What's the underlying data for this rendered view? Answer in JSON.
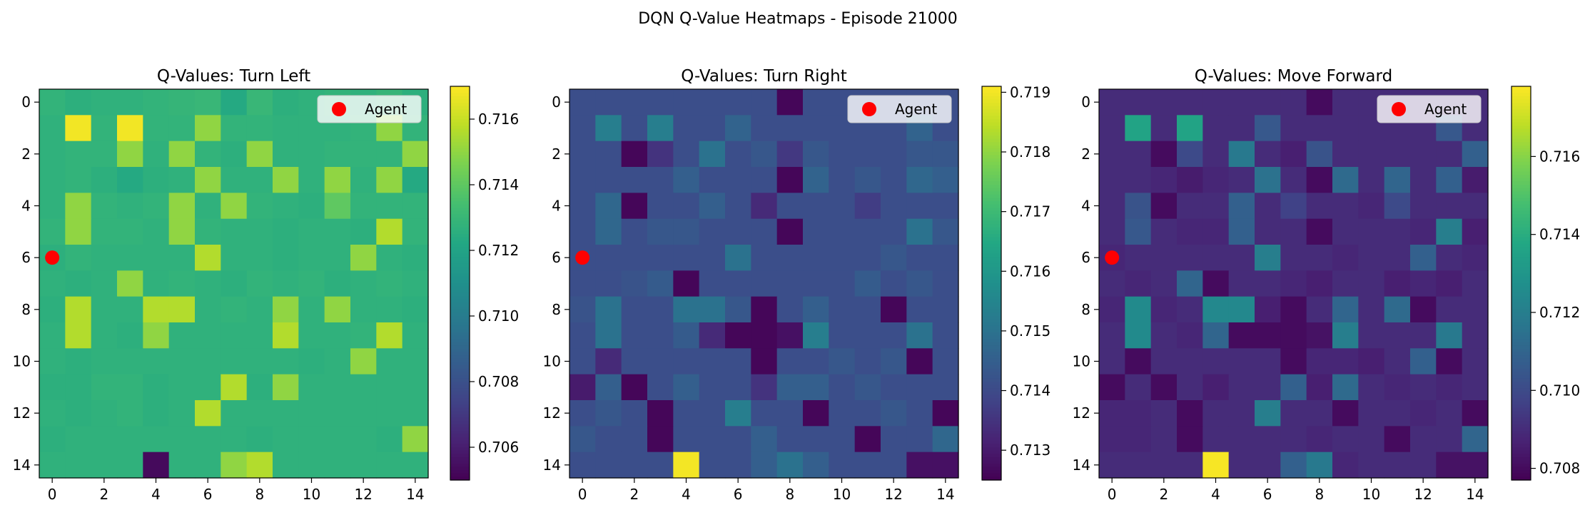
{
  "figure_title": "DQN Q-Value Heatmaps - Episode 21000",
  "legend_label": "Agent",
  "agent_marker_color": "#ff0000",
  "colormap": "viridis",
  "chart_data": [
    {
      "type": "heatmap",
      "title": "Q-Values: Turn Left",
      "x_ticks": [
        "0",
        "2",
        "4",
        "6",
        "8",
        "10",
        "12",
        "14"
      ],
      "y_ticks": [
        "0",
        "2",
        "4",
        "6",
        "8",
        "10",
        "12",
        "14"
      ],
      "colorbar_ticks": [
        "0.706",
        "0.708",
        "0.710",
        "0.712",
        "0.714",
        "0.716"
      ],
      "colorbar_range": [
        0.705,
        0.717
      ],
      "agent": {
        "x": 0,
        "y": 6
      },
      "legend": "top-right",
      "values": [
        [
          0.7128,
          0.7126,
          0.7127,
          0.7127,
          0.7128,
          0.7129,
          0.713,
          0.7123,
          0.713,
          0.7126,
          0.7127,
          0.7128,
          0.7127,
          0.7129,
          0.7126
        ],
        [
          0.7127,
          0.7168,
          0.7128,
          0.7168,
          0.7128,
          0.7128,
          0.715,
          0.7128,
          0.7128,
          0.7127,
          0.7127,
          0.7127,
          0.7128,
          0.715,
          0.7128
        ],
        [
          0.7127,
          0.7128,
          0.7128,
          0.715,
          0.7127,
          0.715,
          0.7128,
          0.7126,
          0.715,
          0.7127,
          0.7127,
          0.7128,
          0.7128,
          0.7128,
          0.715
        ],
        [
          0.7127,
          0.7128,
          0.7126,
          0.7123,
          0.7126,
          0.7127,
          0.715,
          0.7127,
          0.7127,
          0.715,
          0.7127,
          0.715,
          0.7127,
          0.715,
          0.7123
        ],
        [
          0.7127,
          0.715,
          0.7128,
          0.7127,
          0.7128,
          0.715,
          0.7127,
          0.715,
          0.7128,
          0.7127,
          0.7126,
          0.714,
          0.7128,
          0.7128,
          0.7128
        ],
        [
          0.7128,
          0.715,
          0.7128,
          0.7128,
          0.7127,
          0.715,
          0.7128,
          0.7127,
          0.7127,
          0.7126,
          0.7127,
          0.7127,
          0.7126,
          0.7156,
          0.7128
        ],
        [
          0.7126,
          0.7128,
          0.7127,
          0.7127,
          0.7127,
          0.7127,
          0.7156,
          0.7127,
          0.7127,
          0.7126,
          0.7127,
          0.7127,
          0.715,
          0.7127,
          0.7126
        ],
        [
          0.7127,
          0.7126,
          0.7127,
          0.715,
          0.7127,
          0.7128,
          0.7127,
          0.7126,
          0.7128,
          0.7127,
          0.7128,
          0.7126,
          0.7127,
          0.7128,
          0.7127
        ],
        [
          0.7126,
          0.7156,
          0.7127,
          0.7127,
          0.7156,
          0.7156,
          0.7127,
          0.7128,
          0.7127,
          0.715,
          0.7127,
          0.715,
          0.7127,
          0.7127,
          0.7126
        ],
        [
          0.7127,
          0.7156,
          0.7127,
          0.7126,
          0.715,
          0.7127,
          0.7127,
          0.7127,
          0.7127,
          0.7156,
          0.7127,
          0.7127,
          0.7128,
          0.7156,
          0.7127
        ],
        [
          0.7127,
          0.7126,
          0.7127,
          0.7127,
          0.7127,
          0.7127,
          0.7127,
          0.7127,
          0.7127,
          0.7127,
          0.7126,
          0.7127,
          0.715,
          0.7127,
          0.7127
        ],
        [
          0.7126,
          0.7126,
          0.7128,
          0.7128,
          0.7126,
          0.7127,
          0.7127,
          0.7156,
          0.7126,
          0.715,
          0.7127,
          0.7127,
          0.7127,
          0.7127,
          0.7127
        ],
        [
          0.7127,
          0.7126,
          0.7127,
          0.7128,
          0.7126,
          0.7127,
          0.7156,
          0.7127,
          0.7127,
          0.7127,
          0.7127,
          0.7127,
          0.7127,
          0.7127,
          0.7127
        ],
        [
          0.7126,
          0.7127,
          0.7127,
          0.7127,
          0.7127,
          0.7127,
          0.7127,
          0.7127,
          0.7126,
          0.7127,
          0.7127,
          0.7127,
          0.7127,
          0.7126,
          0.715
        ],
        [
          0.7127,
          0.7127,
          0.7127,
          0.7127,
          0.7053,
          0.7127,
          0.7127,
          0.715,
          0.7156,
          0.7127,
          0.7127,
          0.7127,
          0.7127,
          0.7127,
          0.7127
        ]
      ]
    },
    {
      "type": "heatmap",
      "title": "Q-Values: Turn Right",
      "x_ticks": [
        "0",
        "2",
        "4",
        "6",
        "8",
        "10",
        "12",
        "14"
      ],
      "y_ticks": [
        "0",
        "2",
        "4",
        "6",
        "8",
        "10",
        "12",
        "14"
      ],
      "colorbar_ticks": [
        "0.713",
        "0.714",
        "0.715",
        "0.716",
        "0.717",
        "0.718",
        "0.719"
      ],
      "colorbar_range": [
        0.7125,
        0.7191
      ],
      "agent": {
        "x": 0,
        "y": 6
      },
      "legend": "top-right",
      "values": [
        [
          0.7141,
          0.7141,
          0.7141,
          0.7141,
          0.7141,
          0.7141,
          0.7141,
          0.7141,
          0.7126,
          0.7141,
          0.7141,
          0.7141,
          0.7141,
          0.7141,
          0.7141
        ],
        [
          0.7141,
          0.7153,
          0.7141,
          0.7153,
          0.7141,
          0.7141,
          0.7146,
          0.7141,
          0.7141,
          0.7141,
          0.7141,
          0.7141,
          0.7141,
          0.7146,
          0.7141
        ],
        [
          0.7141,
          0.7141,
          0.7126,
          0.7135,
          0.7141,
          0.715,
          0.7141,
          0.7143,
          0.7136,
          0.7143,
          0.7141,
          0.7141,
          0.7141,
          0.7143,
          0.7143
        ],
        [
          0.7141,
          0.7141,
          0.7141,
          0.7141,
          0.7145,
          0.7141,
          0.7141,
          0.7141,
          0.7126,
          0.7146,
          0.7141,
          0.7143,
          0.7141,
          0.7147,
          0.7145
        ],
        [
          0.7141,
          0.7147,
          0.7126,
          0.7141,
          0.7141,
          0.7145,
          0.7141,
          0.7133,
          0.7141,
          0.7141,
          0.7141,
          0.7137,
          0.7141,
          0.7141,
          0.7141
        ],
        [
          0.7141,
          0.7147,
          0.7141,
          0.7143,
          0.7143,
          0.7141,
          0.7141,
          0.7141,
          0.7126,
          0.7141,
          0.7141,
          0.7141,
          0.7141,
          0.715,
          0.7143
        ],
        [
          0.7141,
          0.7141,
          0.7141,
          0.7141,
          0.7141,
          0.7141,
          0.715,
          0.7141,
          0.7141,
          0.7141,
          0.7141,
          0.7141,
          0.7143,
          0.7141,
          0.7141
        ],
        [
          0.7141,
          0.7141,
          0.7142,
          0.7144,
          0.7126,
          0.7141,
          0.7141,
          0.7141,
          0.7141,
          0.7141,
          0.7141,
          0.7144,
          0.7141,
          0.7143,
          0.7141
        ],
        [
          0.7142,
          0.715,
          0.7141,
          0.7141,
          0.715,
          0.715,
          0.7143,
          0.7126,
          0.7141,
          0.7145,
          0.7141,
          0.7141,
          0.7126,
          0.7141,
          0.7141
        ],
        [
          0.7141,
          0.715,
          0.7141,
          0.7141,
          0.7144,
          0.7133,
          0.7126,
          0.7126,
          0.7128,
          0.7153,
          0.7141,
          0.7141,
          0.7141,
          0.715,
          0.7141
        ],
        [
          0.7141,
          0.7133,
          0.7141,
          0.7141,
          0.7141,
          0.7141,
          0.7141,
          0.7126,
          0.7141,
          0.7141,
          0.7143,
          0.7141,
          0.7143,
          0.7126,
          0.7141
        ],
        [
          0.713,
          0.7145,
          0.7126,
          0.7141,
          0.7145,
          0.7141,
          0.7141,
          0.7135,
          0.7145,
          0.7145,
          0.7141,
          0.7143,
          0.7141,
          0.7141,
          0.7141
        ],
        [
          0.7141,
          0.7143,
          0.7141,
          0.7126,
          0.7141,
          0.7141,
          0.7153,
          0.7141,
          0.7141,
          0.7126,
          0.7141,
          0.7141,
          0.7143,
          0.7141,
          0.7126
        ],
        [
          0.7143,
          0.7141,
          0.7141,
          0.7126,
          0.7141,
          0.7141,
          0.7141,
          0.7145,
          0.7141,
          0.7141,
          0.7141,
          0.7126,
          0.7141,
          0.7141,
          0.7147
        ],
        [
          0.7141,
          0.7141,
          0.7141,
          0.7141,
          0.719,
          0.7141,
          0.7141,
          0.7145,
          0.715,
          0.7145,
          0.7141,
          0.7141,
          0.7141,
          0.7128,
          0.7128
        ]
      ]
    },
    {
      "type": "heatmap",
      "title": "Q-Values: Move Forward",
      "x_ticks": [
        "0",
        "2",
        "4",
        "6",
        "8",
        "10",
        "12",
        "14"
      ],
      "y_ticks": [
        "0",
        "2",
        "4",
        "6",
        "8",
        "10",
        "12",
        "14"
      ],
      "colorbar_ticks": [
        "0.708",
        "0.710",
        "0.712",
        "0.714",
        "0.716"
      ],
      "colorbar_range": [
        0.7077,
        0.7178
      ],
      "agent": {
        "x": 0,
        "y": 6
      },
      "legend": "top-right",
      "values": [
        [
          0.709,
          0.709,
          0.709,
          0.709,
          0.709,
          0.709,
          0.709,
          0.709,
          0.708,
          0.709,
          0.709,
          0.709,
          0.709,
          0.709,
          0.709
        ],
        [
          0.709,
          0.7136,
          0.709,
          0.7136,
          0.709,
          0.709,
          0.7105,
          0.709,
          0.709,
          0.709,
          0.709,
          0.709,
          0.709,
          0.7105,
          0.709
        ],
        [
          0.709,
          0.709,
          0.708,
          0.71,
          0.709,
          0.7118,
          0.709,
          0.7086,
          0.7103,
          0.709,
          0.709,
          0.709,
          0.709,
          0.709,
          0.7108
        ],
        [
          0.709,
          0.709,
          0.7088,
          0.7085,
          0.7088,
          0.709,
          0.7115,
          0.709,
          0.708,
          0.7112,
          0.709,
          0.711,
          0.709,
          0.7108,
          0.7085
        ],
        [
          0.709,
          0.7103,
          0.708,
          0.709,
          0.709,
          0.7108,
          0.709,
          0.7097,
          0.709,
          0.709,
          0.7088,
          0.71,
          0.709,
          0.709,
          0.709
        ],
        [
          0.709,
          0.7105,
          0.709,
          0.7088,
          0.7088,
          0.7108,
          0.709,
          0.709,
          0.708,
          0.709,
          0.709,
          0.709,
          0.7088,
          0.712,
          0.7086
        ],
        [
          0.7088,
          0.709,
          0.709,
          0.709,
          0.709,
          0.709,
          0.712,
          0.709,
          0.709,
          0.7088,
          0.709,
          0.709,
          0.7108,
          0.709,
          0.7088
        ],
        [
          0.709,
          0.7088,
          0.709,
          0.711,
          0.708,
          0.709,
          0.709,
          0.7088,
          0.7086,
          0.709,
          0.709,
          0.7086,
          0.7088,
          0.7086,
          0.709
        ],
        [
          0.7088,
          0.7125,
          0.7088,
          0.709,
          0.7124,
          0.7124,
          0.7086,
          0.708,
          0.709,
          0.711,
          0.709,
          0.7112,
          0.708,
          0.709,
          0.709
        ],
        [
          0.709,
          0.7125,
          0.709,
          0.7088,
          0.711,
          0.708,
          0.708,
          0.708,
          0.7082,
          0.712,
          0.709,
          0.709,
          0.709,
          0.7118,
          0.709
        ],
        [
          0.709,
          0.708,
          0.709,
          0.709,
          0.709,
          0.709,
          0.709,
          0.708,
          0.7088,
          0.7088,
          0.7086,
          0.709,
          0.7108,
          0.708,
          0.709
        ],
        [
          0.708,
          0.709,
          0.708,
          0.709,
          0.7086,
          0.709,
          0.709,
          0.7108,
          0.7086,
          0.7112,
          0.709,
          0.7088,
          0.709,
          0.7088,
          0.709
        ],
        [
          0.7088,
          0.7088,
          0.709,
          0.708,
          0.709,
          0.709,
          0.712,
          0.709,
          0.709,
          0.708,
          0.709,
          0.709,
          0.7088,
          0.709,
          0.708
        ],
        [
          0.7088,
          0.7088,
          0.709,
          0.708,
          0.709,
          0.709,
          0.709,
          0.709,
          0.7088,
          0.709,
          0.709,
          0.708,
          0.709,
          0.709,
          0.711
        ],
        [
          0.709,
          0.709,
          0.709,
          0.709,
          0.7177,
          0.709,
          0.709,
          0.7108,
          0.7118,
          0.7088,
          0.709,
          0.709,
          0.709,
          0.7082,
          0.7082
        ]
      ]
    }
  ]
}
